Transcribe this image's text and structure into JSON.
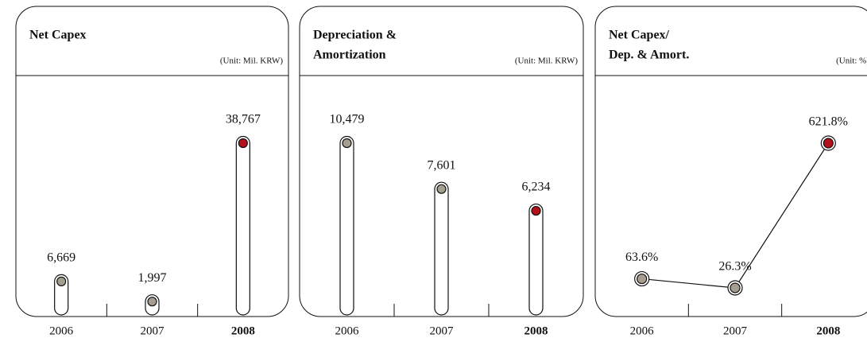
{
  "chart_data": [
    {
      "type": "bar",
      "title": [
        "Net Capex"
      ],
      "unit_label": "(Unit: Mil. KRW)",
      "categories": [
        "2006",
        "2007",
        "2008"
      ],
      "values": [
        6669,
        1997,
        38767
      ],
      "value_labels": [
        "6,669",
        "1,997",
        "38,767"
      ],
      "color": "#a69e8e",
      "highlight_index": 2,
      "highlight_color": "#b3121b",
      "highlight_label_color": "#6e3b3b"
    },
    {
      "type": "bar",
      "title": [
        "Depreciation &",
        "Amortization"
      ],
      "unit_label": "(Unit: Mil. KRW)",
      "categories": [
        "2006",
        "2007",
        "2008"
      ],
      "values": [
        10479,
        7601,
        6234
      ],
      "value_labels": [
        "10,479",
        "7,601",
        "6,234"
      ],
      "color": "#a69e8e",
      "highlight_index": 2,
      "highlight_color": "#b3121b",
      "highlight_label_color": "#6e3b3b"
    },
    {
      "type": "line",
      "title": [
        "Net Capex/",
        "Dep. & Amort."
      ],
      "unit_label": "(Unit: %)",
      "categories": [
        "2006",
        "2007",
        "2008"
      ],
      "values": [
        63.6,
        26.3,
        621.8
      ],
      "value_labels": [
        "63.6%",
        "26.3%",
        "621.8%"
      ],
      "color": "#a69e8e",
      "highlight_index": 2,
      "highlight_color": "#b3121b",
      "highlight_label_color": "#6e3b3b"
    }
  ]
}
